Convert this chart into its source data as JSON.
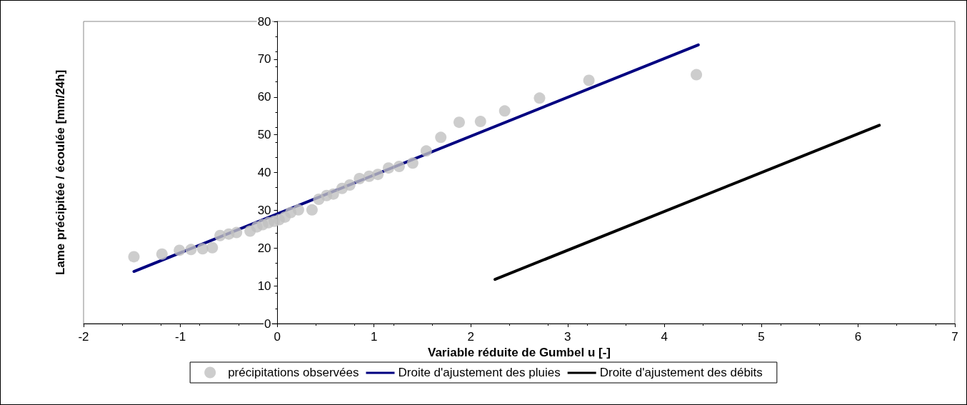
{
  "chart_data": {
    "type": "scatter",
    "xlabel": "Variable réduite de Gumbel u [-]",
    "ylabel": "Lame précipitée / écoulée [mm/24h]",
    "xlim": [
      -2,
      7
    ],
    "xticks": [
      -2,
      -1,
      0,
      1,
      2,
      3,
      4,
      5,
      6,
      7
    ],
    "ylim": [
      0,
      80
    ],
    "yticks": [
      0,
      10,
      20,
      30,
      40,
      50,
      60,
      70,
      80
    ],
    "grid": false,
    "legend": "bottom",
    "marker": "circle",
    "series": [
      {
        "name": "précipitations observées",
        "type": "scatter",
        "color": "#c0c0c0",
        "x": [
          -1.48,
          -1.19,
          -1.01,
          -0.89,
          -0.77,
          -0.67,
          -0.59,
          -0.5,
          -0.42,
          -0.28,
          -0.21,
          -0.15,
          -0.09,
          -0.03,
          0.02,
          0.08,
          0.14,
          0.22,
          0.36,
          0.43,
          0.51,
          0.58,
          0.67,
          0.75,
          0.85,
          0.95,
          1.04,
          1.15,
          1.26,
          1.4,
          1.54,
          1.69,
          1.88,
          2.1,
          2.35,
          2.71,
          3.22,
          4.33
        ],
        "values": [
          17.7,
          18.4,
          19.4,
          19.6,
          19.8,
          20.1,
          23.3,
          23.7,
          24.1,
          24.5,
          25.6,
          26.2,
          26.7,
          27.1,
          27.5,
          28.2,
          29.4,
          30.1,
          30.1,
          32.9,
          33.9,
          34.3,
          35.8,
          36.7,
          38.4,
          39.0,
          39.5,
          41.2,
          41.6,
          42.5,
          45.7,
          49.3,
          53.3,
          53.5,
          56.3,
          59.7,
          64.4,
          65.9
        ]
      },
      {
        "name": "Droite d'ajustement des pluies",
        "type": "line",
        "color": "#000080",
        "marker": "none",
        "x": [
          -1.48,
          4.35
        ],
        "values": [
          13.8,
          73.8
        ]
      },
      {
        "name": "Droite d'ajustement des débits",
        "type": "line",
        "color": "#000000",
        "marker": "none",
        "x": [
          2.25,
          6.22
        ],
        "values": [
          11.7,
          52.5
        ]
      }
    ]
  }
}
